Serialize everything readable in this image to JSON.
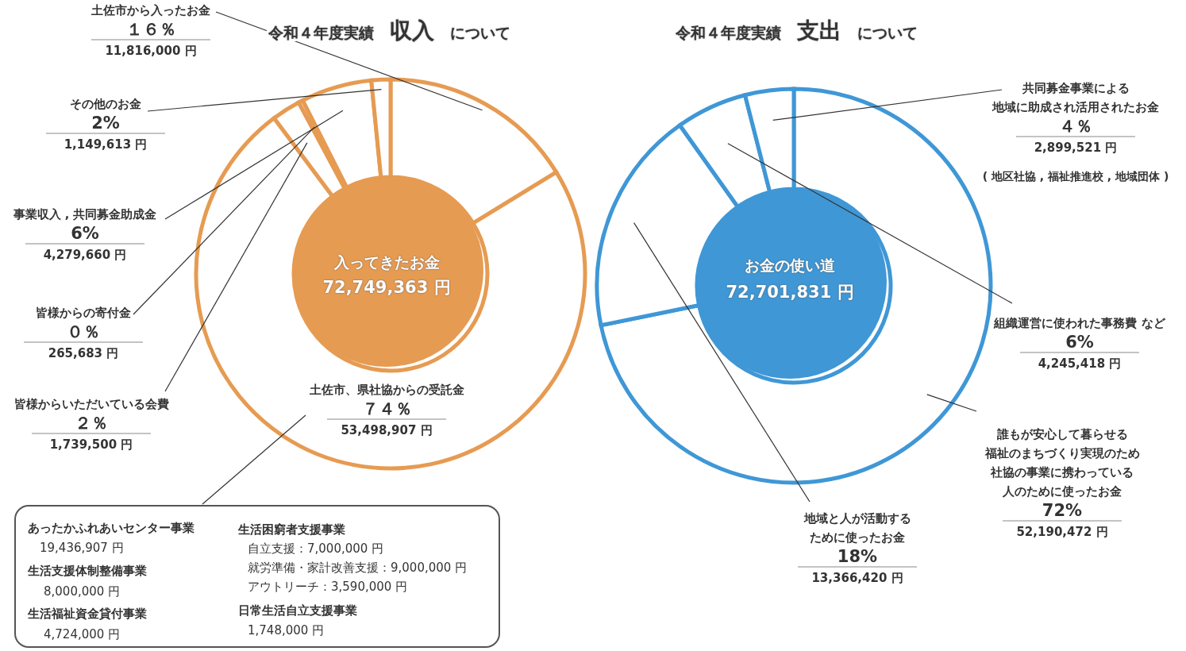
{
  "chart_data": [
    {
      "type": "donut",
      "title": "令和４年度実績 収入 について",
      "categories": [
        "土佐市から入ったお金",
        "土佐市、県社協からの受託金",
        "皆様からいただいている会費",
        "皆様からの寄付金",
        "事業収入 , 共同募金助成金",
        "その他のお金"
      ],
      "values": [
        11816000,
        53498907,
        1739500,
        265683,
        4279660,
        1149613
      ],
      "value_labels": [
        "１６％\n11,816,000 円",
        "７４％\n53,498,907 円",
        "２％\n1,739,500 円",
        "０％\n265,683 円",
        "6%\n4,279,660 円",
        "2%\n1,149,613 円"
      ],
      "colors": [
        "#e69b52",
        "#e69b52",
        "#e69b52",
        "#e69b52",
        "#e69b52",
        "#e69b52"
      ],
      "annotations": [
        "入ってきたお金",
        "72,749,363 円",
        "あったかふれあいセンター事業",
        "19,436,907 円",
        "生活支援体制整備事業",
        "8,000,000 円",
        "生活福祉資金貸付事業",
        "4,724,000 円",
        "生活困窮者支援事業",
        "自立支援：7,000,000 円",
        "就労準備・家計改善支援：9,000,000 円",
        "アウトリーチ：3,590,000 円",
        "日常生活自立支援事業",
        "1,748,000 円"
      ],
      "legend": false
    },
    {
      "type": "donut",
      "title": "令和４年度実績 支出 について",
      "categories": [
        "誰もが安心して暮らせる福祉のまちづくり実現のため社協の事業に携わっている人のために使ったお金",
        "地域と人が活動するために使ったお金",
        "組織運営に使われた事務費 など",
        "共同募金事業による地域に助成され活用されたお金"
      ],
      "values": [
        52190472,
        13366420,
        4245418,
        2899521
      ],
      "value_labels": [
        "72%\n52,190,472 円",
        "18%\n13,366,420 円",
        "6%\n4,245,418 円",
        "４％\n2,899,521 円"
      ],
      "colors": [
        "#3f97d6",
        "#3f97d6",
        "#3f97d6",
        "#3f97d6"
      ],
      "annotations": [
        "お金の使い道",
        "72,701,831 円",
        "( 地区社協 , 福祉推進校 , 地域団体 )"
      ],
      "legend": false
    }
  ]
}
